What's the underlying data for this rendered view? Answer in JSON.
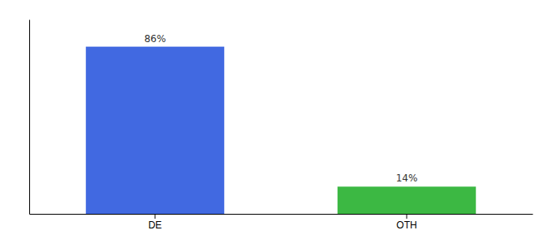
{
  "chart_data": {
    "type": "bar",
    "categories": [
      "DE",
      "OTH"
    ],
    "values": [
      86,
      14
    ],
    "value_labels": [
      "86%",
      "14%"
    ],
    "colors": [
      "#4169E1",
      "#3CB843"
    ],
    "ylim": [
      0,
      100
    ],
    "data_labels": true,
    "tick_labels": "x"
  }
}
